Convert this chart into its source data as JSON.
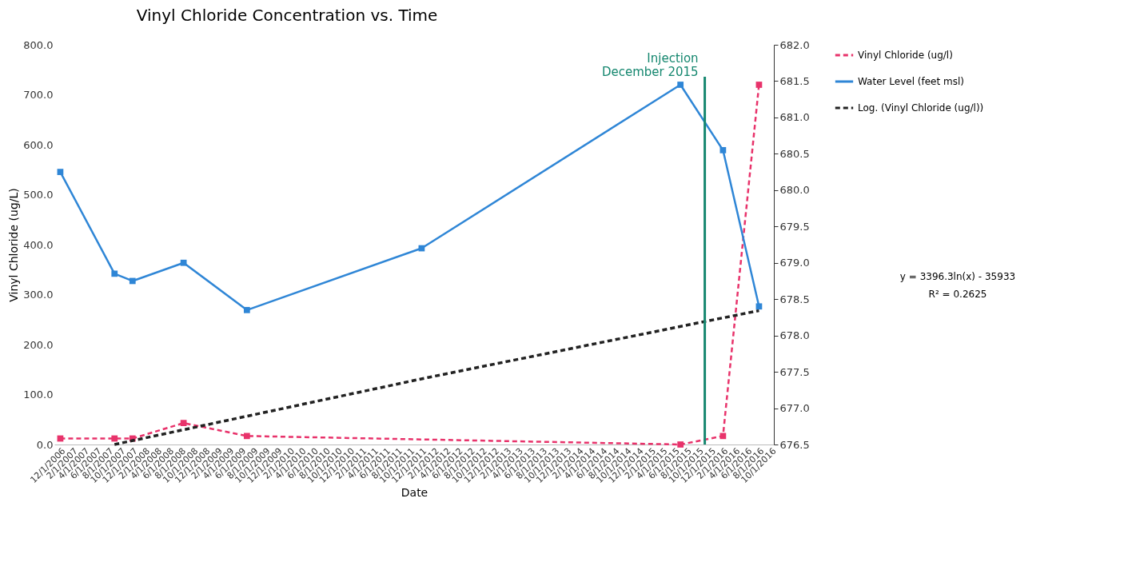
{
  "chart_data": {
    "type": "line",
    "title": "Vinyl Chloride Concentration vs. Time",
    "xlabel": "Date",
    "ylabel": "Vinyl Chloride (ug/L)",
    "x": [
      "2006-12-01",
      "2007-09-01",
      "2007-12-01",
      "2008-08-15",
      "2009-07-01",
      "2011-12-01",
      "2015-07-01",
      "2016-02-01",
      "2016-08-01"
    ],
    "series": [
      {
        "name": "Vinyl Chloride (ug/l)",
        "color": "#e8336b",
        "line_style": "dashed",
        "marker": "square",
        "x": [
          "2006-12-01",
          "2007-09-01",
          "2007-12-01",
          "2008-08-15",
          "2009-07-01",
          "2015-07-01",
          "2016-02-01",
          "2016-08-01"
        ],
        "values": [
          12,
          12,
          12,
          43,
          17,
          0,
          17,
          720
        ]
      },
      {
        "name": "Water Level (feet msl)",
        "color": "#2f86d6",
        "line_style": "solid",
        "marker": "square",
        "axis": "y2",
        "values": [
          680.25,
          678.85,
          678.75,
          679.0,
          678.35,
          679.2,
          681.45,
          680.55,
          678.4
        ]
      },
      {
        "name": "Log. (Vinyl Chloride (ug/l))",
        "type": "line",
        "color": "#222222",
        "line_style": "dashed",
        "marker": "none",
        "x": [
          "2007-09-01",
          "2012-01-01",
          "2016-08-01"
        ],
        "values": [
          0,
          134,
          268
        ]
      }
    ],
    "xlim": [
      "2006-11-01",
      "2016-10-15"
    ],
    "xticks": [
      {
        "value": "2006-12-01",
        "label": "12/1/2006"
      },
      {
        "value": "2007-02-01",
        "label": "2/1/2007"
      },
      {
        "value": "2007-04-01",
        "label": "4/1/2007"
      },
      {
        "value": "2007-06-01",
        "label": "6/1/2007"
      },
      {
        "value": "2007-08-01",
        "label": "8/1/2007"
      },
      {
        "value": "2007-10-01",
        "label": "10/1/2007"
      },
      {
        "value": "2007-12-01",
        "label": "12/1/2007"
      },
      {
        "value": "2008-02-01",
        "label": "2/1/2008"
      },
      {
        "value": "2008-04-01",
        "label": "4/1/2008"
      },
      {
        "value": "2008-06-01",
        "label": "6/1/2008"
      },
      {
        "value": "2008-08-01",
        "label": "8/1/2008"
      },
      {
        "value": "2008-10-01",
        "label": "10/1/2008"
      },
      {
        "value": "2008-12-01",
        "label": "12/1/2008"
      },
      {
        "value": "2009-02-01",
        "label": "2/1/2009"
      },
      {
        "value": "2009-04-01",
        "label": "4/1/2009"
      },
      {
        "value": "2009-06-01",
        "label": "6/1/2009"
      },
      {
        "value": "2009-08-01",
        "label": "8/1/2009"
      },
      {
        "value": "2009-10-01",
        "label": "10/1/2009"
      },
      {
        "value": "2009-12-01",
        "label": "12/1/2009"
      },
      {
        "value": "2010-02-01",
        "label": "2/1/2010"
      },
      {
        "value": "2010-04-01",
        "label": "4/1/2010"
      },
      {
        "value": "2010-06-01",
        "label": "6/1/2010"
      },
      {
        "value": "2010-08-01",
        "label": "8/1/2010"
      },
      {
        "value": "2010-10-01",
        "label": "10/1/2010"
      },
      {
        "value": "2010-12-01",
        "label": "12/1/2010"
      },
      {
        "value": "2011-02-01",
        "label": "2/1/2011"
      },
      {
        "value": "2011-04-01",
        "label": "4/1/2011"
      },
      {
        "value": "2011-06-01",
        "label": "6/1/2011"
      },
      {
        "value": "2011-08-01",
        "label": "8/1/2011"
      },
      {
        "value": "2011-10-01",
        "label": "10/1/2011"
      },
      {
        "value": "2011-12-01",
        "label": "12/1/2011"
      },
      {
        "value": "2012-02-01",
        "label": "2/1/2012"
      },
      {
        "value": "2012-04-01",
        "label": "4/1/2012"
      },
      {
        "value": "2012-06-01",
        "label": "6/1/2012"
      },
      {
        "value": "2012-08-01",
        "label": "8/1/2012"
      },
      {
        "value": "2012-10-01",
        "label": "10/1/2012"
      },
      {
        "value": "2012-12-01",
        "label": "12/1/2012"
      },
      {
        "value": "2013-02-01",
        "label": "2/1/2013"
      },
      {
        "value": "2013-04-01",
        "label": "4/1/2013"
      },
      {
        "value": "2013-06-01",
        "label": "6/1/2013"
      },
      {
        "value": "2013-08-01",
        "label": "8/1/2013"
      },
      {
        "value": "2013-10-01",
        "label": "10/1/2013"
      },
      {
        "value": "2013-12-01",
        "label": "12/1/2013"
      },
      {
        "value": "2014-02-01",
        "label": "2/1/2014"
      },
      {
        "value": "2014-04-01",
        "label": "4/1/2014"
      },
      {
        "value": "2014-06-01",
        "label": "6/1/2014"
      },
      {
        "value": "2014-08-01",
        "label": "8/1/2014"
      },
      {
        "value": "2014-10-01",
        "label": "10/1/2014"
      },
      {
        "value": "2014-12-01",
        "label": "12/1/2014"
      },
      {
        "value": "2015-02-01",
        "label": "2/1/2015"
      },
      {
        "value": "2015-04-01",
        "label": "4/1/2015"
      },
      {
        "value": "2015-06-01",
        "label": "6/1/2015"
      },
      {
        "value": "2015-08-01",
        "label": "8/1/2015"
      },
      {
        "value": "2015-10-01",
        "label": "10/1/2015"
      },
      {
        "value": "2015-12-01",
        "label": "12/1/2015"
      },
      {
        "value": "2016-02-01",
        "label": "2/1/2016"
      },
      {
        "value": "2016-04-01",
        "label": "4/1/2016"
      },
      {
        "value": "2016-06-01",
        "label": "6/1/2016"
      },
      {
        "value": "2016-08-01",
        "label": "8/1/2016"
      },
      {
        "value": "2016-10-01",
        "label": "10/1/2016"
      }
    ],
    "ylim": [
      0,
      800
    ],
    "yticks": [
      {
        "value": 0,
        "label": "0.0"
      },
      {
        "value": 100,
        "label": "100.0"
      },
      {
        "value": 200,
        "label": "200.0"
      },
      {
        "value": 300,
        "label": "300.0"
      },
      {
        "value": 400,
        "label": "400.0"
      },
      {
        "value": 500,
        "label": "500.0"
      },
      {
        "value": 600,
        "label": "600.0"
      },
      {
        "value": 700,
        "label": "700.0"
      },
      {
        "value": 800,
        "label": "800.0"
      }
    ],
    "y2lim": [
      676.5,
      682
    ],
    "y2ticks": [
      676.5,
      {
        "value": 677,
        "label": "677.0"
      },
      677.5,
      {
        "value": 678,
        "label": "678.0"
      },
      678.5,
      {
        "value": 679,
        "label": "679.0"
      },
      679.5,
      {
        "value": 680,
        "label": "680.0"
      },
      680.5,
      {
        "value": 681,
        "label": "681.0"
      },
      681.5,
      {
        "value": 682,
        "label": "682.0"
      }
    ],
    "ref_lines": [
      {
        "axis": "x",
        "value": "2015-11-01",
        "label": "Injection\nDecember 2015",
        "color": "#15876f",
        "line_style": "solid"
      }
    ],
    "annotations": [
      "y = 3396.3ln(x) - 35933",
      "R² = 0.2625"
    ],
    "legend": "right",
    "grid": false
  }
}
